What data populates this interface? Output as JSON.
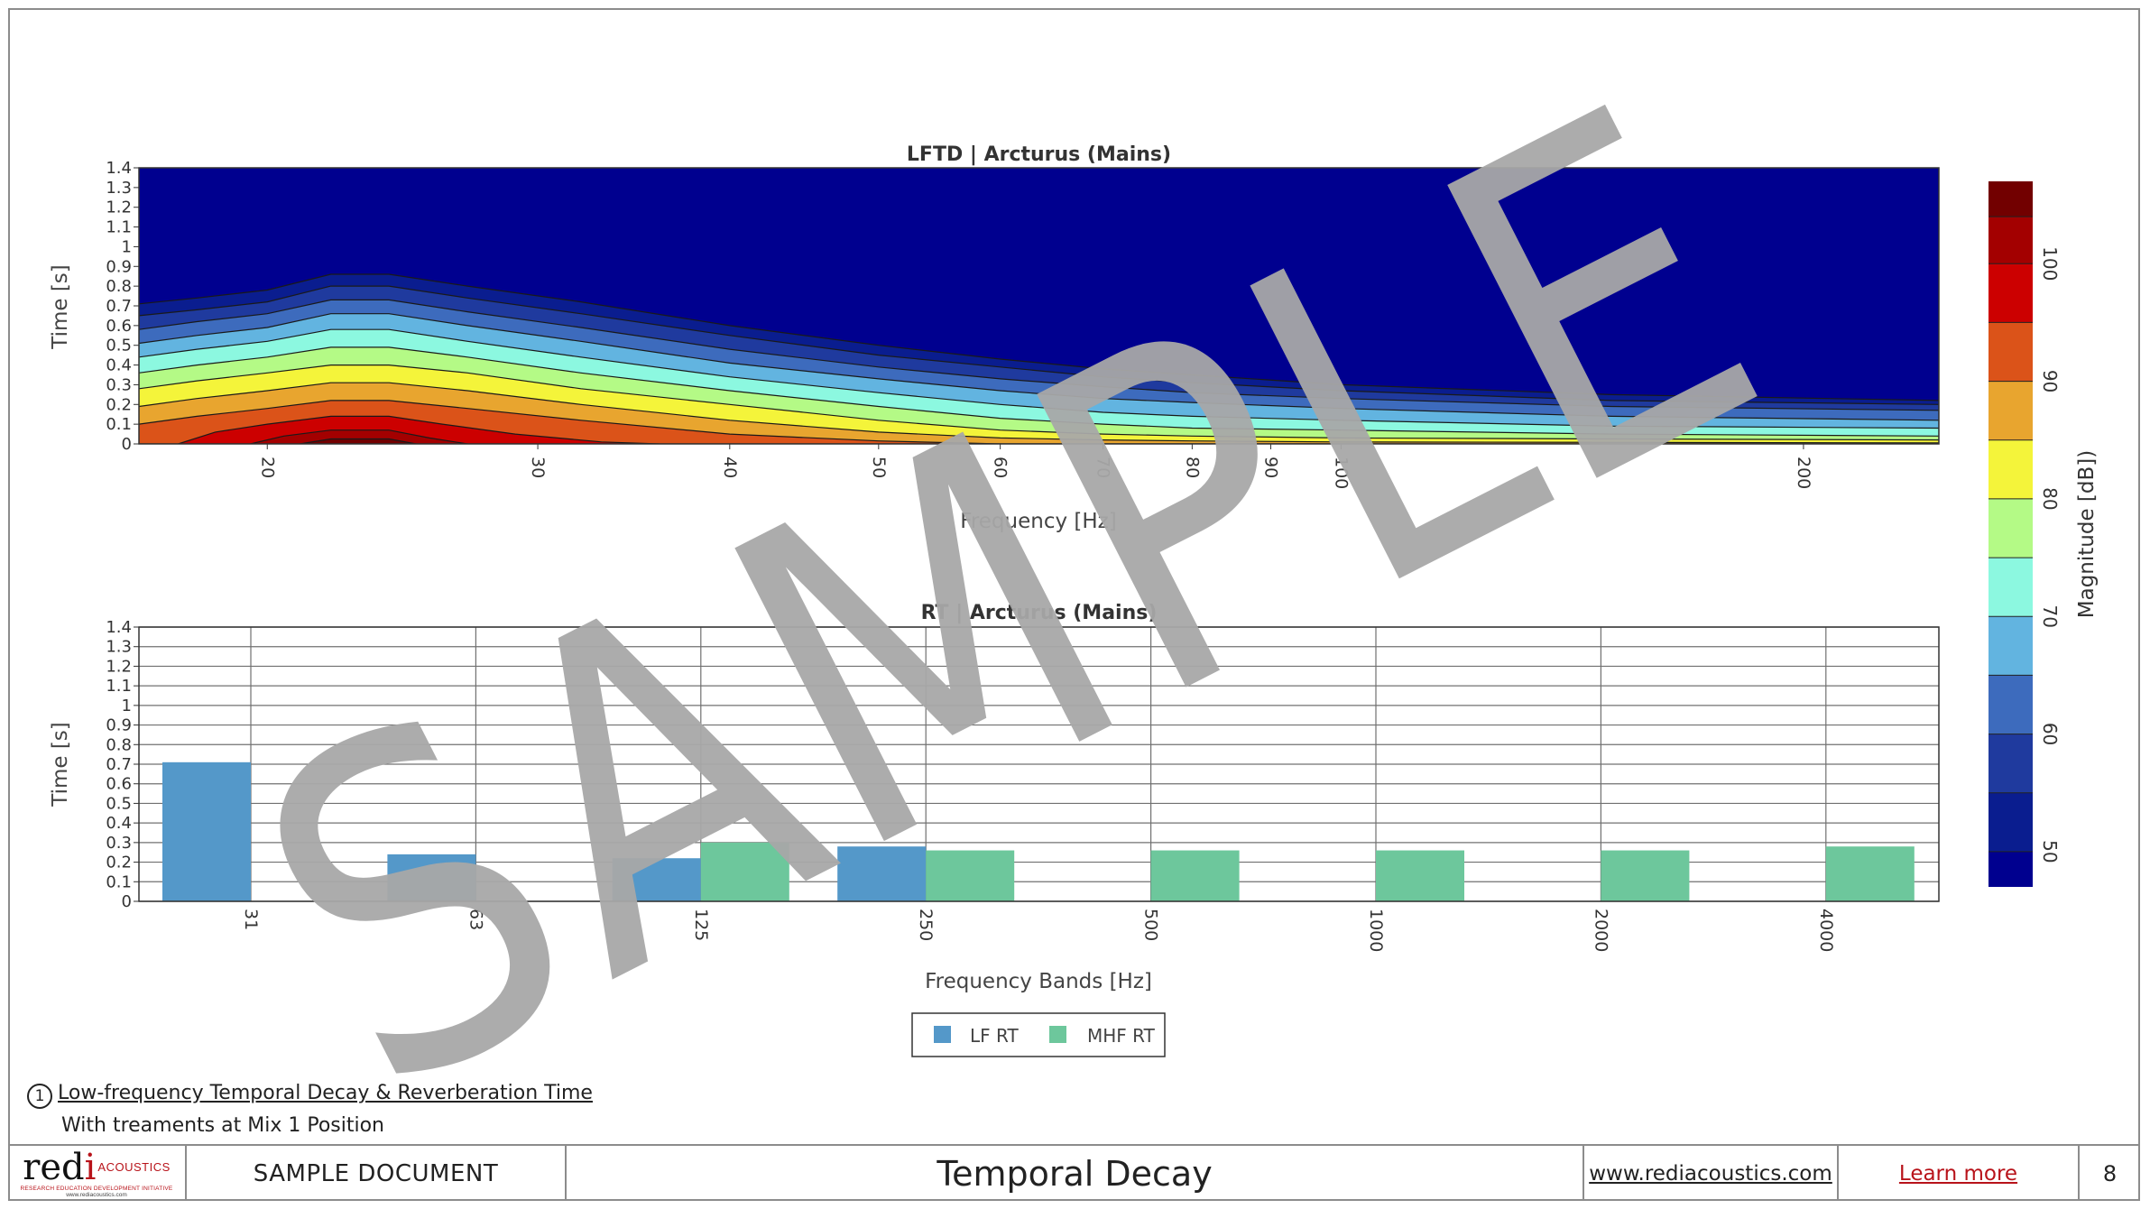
{
  "chart_data": [
    {
      "type": "heatmap",
      "title": "LFTD | Arcturus (Mains)",
      "xlabel": "Frequency [Hz]",
      "ylabel": "Time [s]",
      "x_scale": "log",
      "xlim": [
        16.5,
        245
      ],
      "ylim": [
        0,
        1.4
      ],
      "x_ticks": [
        20,
        30,
        40,
        50,
        60,
        70,
        80,
        90,
        100,
        200
      ],
      "y_ticks": [
        0,
        0.1,
        0.2,
        0.3,
        0.4,
        0.5,
        0.6,
        0.7,
        0.8,
        0.9,
        1,
        1.1,
        1.2,
        1.3,
        1.4
      ],
      "colorbar": {
        "label": "Magnitude [dB])",
        "min": 47,
        "max": 107,
        "ticks": [
          50,
          60,
          70,
          80,
          90,
          100
        ],
        "levels": [
          47,
          50,
          55,
          60,
          65,
          70,
          75,
          80,
          85,
          90,
          95,
          100,
          104,
          107
        ],
        "colors": [
          "#00008f",
          "#0a1d8f",
          "#1f3a9e",
          "#3d6bbd",
          "#62b4e0",
          "#8cf8e0",
          "#b4fa86",
          "#f4f43a",
          "#e8a52f",
          "#db5319",
          "#cc0000",
          "#a30000",
          "#720000"
        ]
      },
      "contour_curves": [
        {
          "level": 50,
          "points": [
            [
              16.5,
              0.71
            ],
            [
              18,
              0.74
            ],
            [
              20,
              0.78
            ],
            [
              22,
              0.86
            ],
            [
              24,
              0.86
            ],
            [
              27,
              0.8
            ],
            [
              32,
              0.72
            ],
            [
              40,
              0.6
            ],
            [
              50,
              0.5
            ],
            [
              60,
              0.43
            ],
            [
              70,
              0.38
            ],
            [
              80,
              0.35
            ],
            [
              100,
              0.3
            ],
            [
              150,
              0.25
            ],
            [
              245,
              0.22
            ]
          ]
        },
        {
          "level": 55,
          "points": [
            [
              16.5,
              0.65
            ],
            [
              18,
              0.68
            ],
            [
              20,
              0.72
            ],
            [
              22,
              0.8
            ],
            [
              24,
              0.8
            ],
            [
              27,
              0.74
            ],
            [
              32,
              0.66
            ],
            [
              40,
              0.55
            ],
            [
              50,
              0.45
            ],
            [
              60,
              0.39
            ],
            [
              70,
              0.34
            ],
            [
              80,
              0.31
            ],
            [
              100,
              0.27
            ],
            [
              150,
              0.22
            ],
            [
              245,
              0.2
            ]
          ]
        },
        {
          "level": 60,
          "points": [
            [
              16.5,
              0.58
            ],
            [
              18,
              0.62
            ],
            [
              20,
              0.66
            ],
            [
              22,
              0.73
            ],
            [
              24,
              0.73
            ],
            [
              27,
              0.67
            ],
            [
              32,
              0.59
            ],
            [
              40,
              0.48
            ],
            [
              50,
              0.39
            ],
            [
              60,
              0.33
            ],
            [
              70,
              0.29
            ],
            [
              80,
              0.26
            ],
            [
              100,
              0.23
            ],
            [
              150,
              0.19
            ],
            [
              245,
              0.17
            ]
          ]
        },
        {
          "level": 65,
          "points": [
            [
              16.5,
              0.51
            ],
            [
              18,
              0.55
            ],
            [
              20,
              0.59
            ],
            [
              22,
              0.66
            ],
            [
              24,
              0.66
            ],
            [
              27,
              0.6
            ],
            [
              32,
              0.52
            ],
            [
              40,
              0.41
            ],
            [
              50,
              0.33
            ],
            [
              60,
              0.27
            ],
            [
              70,
              0.23
            ],
            [
              80,
              0.21
            ],
            [
              100,
              0.18
            ],
            [
              150,
              0.14
            ],
            [
              245,
              0.12
            ]
          ]
        },
        {
          "level": 70,
          "points": [
            [
              16.5,
              0.44
            ],
            [
              18,
              0.48
            ],
            [
              20,
              0.52
            ],
            [
              22,
              0.58
            ],
            [
              24,
              0.58
            ],
            [
              27,
              0.52
            ],
            [
              32,
              0.44
            ],
            [
              40,
              0.34
            ],
            [
              50,
              0.26
            ],
            [
              60,
              0.2
            ],
            [
              70,
              0.16
            ],
            [
              80,
              0.14
            ],
            [
              100,
              0.12
            ],
            [
              150,
              0.09
            ],
            [
              245,
              0.08
            ]
          ]
        },
        {
          "level": 75,
          "points": [
            [
              16.5,
              0.36
            ],
            [
              18,
              0.4
            ],
            [
              20,
              0.44
            ],
            [
              22,
              0.49
            ],
            [
              24,
              0.49
            ],
            [
              27,
              0.44
            ],
            [
              32,
              0.36
            ],
            [
              40,
              0.27
            ],
            [
              50,
              0.19
            ],
            [
              60,
              0.13
            ],
            [
              70,
              0.1
            ],
            [
              80,
              0.08
            ],
            [
              100,
              0.07
            ],
            [
              150,
              0.05
            ],
            [
              245,
              0.04
            ]
          ]
        },
        {
          "level": 80,
          "points": [
            [
              16.5,
              0.28
            ],
            [
              18,
              0.32
            ],
            [
              20,
              0.36
            ],
            [
              22,
              0.4
            ],
            [
              24,
              0.4
            ],
            [
              27,
              0.36
            ],
            [
              32,
              0.28
            ],
            [
              40,
              0.2
            ],
            [
              50,
              0.12
            ],
            [
              60,
              0.07
            ],
            [
              70,
              0.05
            ],
            [
              80,
              0.04
            ],
            [
              100,
              0.03
            ],
            [
              150,
              0.025
            ],
            [
              245,
              0.02
            ]
          ]
        },
        {
          "level": 85,
          "points": [
            [
              16.5,
              0.19
            ],
            [
              18,
              0.23
            ],
            [
              20,
              0.27
            ],
            [
              22,
              0.31
            ],
            [
              24,
              0.31
            ],
            [
              27,
              0.27
            ],
            [
              32,
              0.2
            ],
            [
              40,
              0.12
            ],
            [
              50,
              0.06
            ],
            [
              60,
              0.03
            ],
            [
              70,
              0.02
            ],
            [
              80,
              0.015
            ],
            [
              100,
              0.01
            ],
            [
              245,
              0.005
            ]
          ]
        },
        {
          "level": 90,
          "points": [
            [
              16.5,
              0.1
            ],
            [
              18,
              0.14
            ],
            [
              20,
              0.18
            ],
            [
              22,
              0.22
            ],
            [
              24,
              0.22
            ],
            [
              27,
              0.18
            ],
            [
              32,
              0.12
            ],
            [
              40,
              0.05
            ],
            [
              50,
              0.015
            ],
            [
              60,
              0
            ],
            [
              245,
              0
            ]
          ]
        },
        {
          "level": 95,
          "points": [
            [
              17.5,
              0
            ],
            [
              18.5,
              0.06
            ],
            [
              20,
              0.1
            ],
            [
              22,
              0.14
            ],
            [
              24,
              0.14
            ],
            [
              26,
              0.1
            ],
            [
              29,
              0.05
            ],
            [
              33,
              0.01
            ],
            [
              36,
              0
            ]
          ]
        },
        {
          "level": 100,
          "points": [
            [
              19.5,
              0
            ],
            [
              20.5,
              0.04
            ],
            [
              22,
              0.07
            ],
            [
              24,
              0.07
            ],
            [
              25.5,
              0.03
            ],
            [
              27,
              0
            ]
          ]
        },
        {
          "level": 104,
          "points": [
            [
              21,
              0
            ],
            [
              22,
              0.025
            ],
            [
              24,
              0.025
            ],
            [
              25,
              0
            ]
          ]
        }
      ]
    },
    {
      "type": "bar",
      "title": "RT | Arcturus (Mains)",
      "xlabel": "Frequency Bands [Hz]",
      "ylabel": "Time [s]",
      "categories": [
        "31",
        "63",
        "125",
        "250",
        "500",
        "1000",
        "2000",
        "4000"
      ],
      "ylim": [
        0,
        1.4
      ],
      "y_ticks": [
        0,
        0.1,
        0.2,
        0.3,
        0.4,
        0.5,
        0.6,
        0.7,
        0.8,
        0.9,
        1,
        1.1,
        1.2,
        1.3,
        1.4
      ],
      "grid": true,
      "legend_position": "bottom-center",
      "series": [
        {
          "name": "LF RT",
          "color": "#5498c9",
          "values": [
            0.71,
            0.24,
            0.22,
            0.28,
            null,
            null,
            null,
            null
          ]
        },
        {
          "name": "MHF RT",
          "color": "#6dc79c",
          "values": [
            null,
            null,
            0.3,
            0.26,
            0.26,
            0.26,
            0.26,
            0.28
          ]
        }
      ]
    }
  ],
  "watermark": {
    "text": "SAMPLE",
    "color": "#a8a8a8"
  },
  "caption": {
    "number": "1",
    "title": "Low-frequency Temporal Decay & Reverberation Time",
    "subtitle": "With treaments at Mix 1 Position"
  },
  "footer": {
    "logo": {
      "word_black": "red",
      "word_red": "i",
      "acoustics": "ACOUSTICS",
      "tagline": "RESEARCH EDUCATION DEVELOPMENT INITIATIVE",
      "url": "www.rediacoustics.com"
    },
    "doc_label": "SAMPLE DOCUMENT",
    "page_title": "Temporal Decay",
    "site_link": "www.rediacoustics.com",
    "learn_more": "Learn more",
    "page_number": "8"
  }
}
